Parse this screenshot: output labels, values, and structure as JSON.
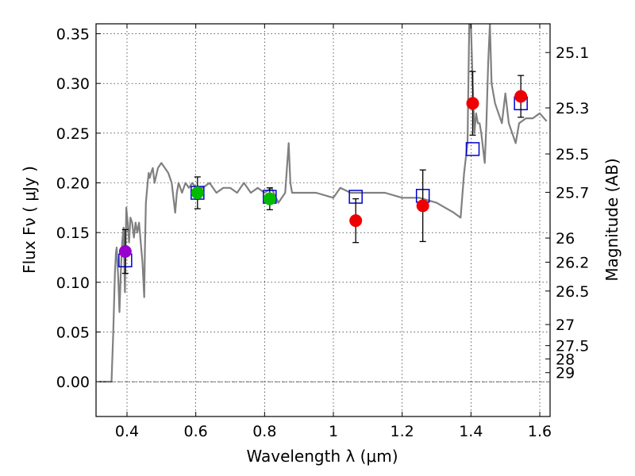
{
  "chart_data": {
    "type": "scatter",
    "xlabel": "Wavelength  λ (μm)",
    "ylabel": "Flux  Fν  ( μJy )",
    "ylabel_right": "Magnitude (AB)",
    "xlim": [
      0.31,
      1.63
    ],
    "ylim": [
      -0.035,
      0.36
    ],
    "xticks": [
      0.4,
      0.6,
      0.8,
      1.0,
      1.2,
      1.4,
      1.6
    ],
    "xtick_labels": [
      "0.4",
      "0.6",
      "0.8",
      "1",
      "1.2",
      "1.4",
      "1.6"
    ],
    "yticks": [
      0.0,
      0.05,
      0.1,
      0.15,
      0.2,
      0.25,
      0.3,
      0.35
    ],
    "ytick_labels": [
      "0.00",
      "0.05",
      "0.10",
      "0.15",
      "0.20",
      "0.25",
      "0.30",
      "0.35"
    ],
    "right_ticks": [
      {
        "label": "25.1",
        "flux": 0.3311
      },
      {
        "label": "25.3",
        "flux": 0.2754
      },
      {
        "label": "25.5",
        "flux": 0.2291
      },
      {
        "label": "25.7",
        "flux": 0.1905
      },
      {
        "label": "26",
        "flux": 0.1445
      },
      {
        "label": "26.2",
        "flux": 0.1202
      },
      {
        "label": "26.5",
        "flux": 0.0912
      },
      {
        "label": "27",
        "flux": 0.0575
      },
      {
        "label": "27.5",
        "flux": 0.0363
      },
      {
        "label": "28",
        "flux": 0.0229
      },
      {
        "label": "29",
        "flux": 0.0091
      }
    ],
    "grid": true,
    "colors": {
      "model": "#808080",
      "boxes": "#0000cc",
      "errorbars": "#000000",
      "purple": "#9900cc",
      "green": "#00bb00",
      "red": "#ee0000"
    },
    "model_sed": {
      "x": [
        0.32,
        0.355,
        0.36,
        0.365,
        0.368,
        0.37,
        0.375,
        0.378,
        0.382,
        0.386,
        0.39,
        0.394,
        0.398,
        0.402,
        0.406,
        0.41,
        0.415,
        0.42,
        0.425,
        0.43,
        0.435,
        0.44,
        0.445,
        0.45,
        0.452,
        0.455,
        0.46,
        0.463,
        0.466,
        0.47,
        0.475,
        0.48,
        0.49,
        0.5,
        0.51,
        0.52,
        0.53,
        0.54,
        0.545,
        0.55,
        0.56,
        0.57,
        0.58,
        0.59,
        0.6,
        0.62,
        0.64,
        0.66,
        0.68,
        0.7,
        0.72,
        0.74,
        0.76,
        0.78,
        0.8,
        0.82,
        0.84,
        0.86,
        0.87,
        0.875,
        0.88,
        0.9,
        0.95,
        1.0,
        1.02,
        1.05,
        1.1,
        1.15,
        1.2,
        1.25,
        1.3,
        1.35,
        1.37,
        1.38,
        1.39,
        1.395,
        1.4,
        1.405,
        1.41,
        1.415,
        1.42,
        1.425,
        1.43,
        1.44,
        1.445,
        1.45,
        1.455,
        1.46,
        1.47,
        1.48,
        1.49,
        1.5,
        1.51,
        1.52,
        1.53,
        1.54,
        1.56,
        1.58,
        1.6,
        1.62
      ],
      "y": [
        0.0,
        0.0,
        0.05,
        0.11,
        0.13,
        0.135,
        0.1,
        0.07,
        0.11,
        0.14,
        0.155,
        0.09,
        0.175,
        0.16,
        0.14,
        0.165,
        0.16,
        0.145,
        0.16,
        0.15,
        0.16,
        0.14,
        0.12,
        0.085,
        0.13,
        0.18,
        0.2,
        0.21,
        0.205,
        0.21,
        0.215,
        0.2,
        0.215,
        0.22,
        0.215,
        0.21,
        0.2,
        0.17,
        0.19,
        0.2,
        0.19,
        0.2,
        0.195,
        0.2,
        0.195,
        0.195,
        0.2,
        0.19,
        0.195,
        0.195,
        0.19,
        0.2,
        0.19,
        0.195,
        0.19,
        0.195,
        0.18,
        0.19,
        0.24,
        0.2,
        0.19,
        0.19,
        0.19,
        0.185,
        0.195,
        0.19,
        0.19,
        0.19,
        0.185,
        0.185,
        0.18,
        0.17,
        0.165,
        0.21,
        0.24,
        0.36,
        0.36,
        0.3,
        0.25,
        0.27,
        0.26,
        0.26,
        0.25,
        0.22,
        0.26,
        0.32,
        0.36,
        0.3,
        0.28,
        0.27,
        0.26,
        0.29,
        0.26,
        0.25,
        0.24,
        0.26,
        0.265,
        0.265,
        0.27,
        0.262
      ]
    },
    "model_boxes": {
      "x": [
        0.395,
        0.605,
        0.815,
        1.065,
        1.26,
        1.405,
        1.545
      ],
      "y": [
        0.122,
        0.19,
        0.186,
        0.186,
        0.187,
        0.234,
        0.28
      ]
    },
    "observed": {
      "x": [
        0.395,
        0.605,
        0.815,
        1.065,
        1.26,
        1.405,
        1.545
      ],
      "y": [
        0.131,
        0.19,
        0.184,
        0.162,
        0.177,
        0.28,
        0.287
      ],
      "yerr": [
        0.022,
        0.016,
        0.011,
        0.022,
        0.036,
        0.032,
        0.021
      ],
      "color_keys": [
        "purple",
        "green",
        "green",
        "red",
        "red",
        "red",
        "red"
      ]
    }
  }
}
